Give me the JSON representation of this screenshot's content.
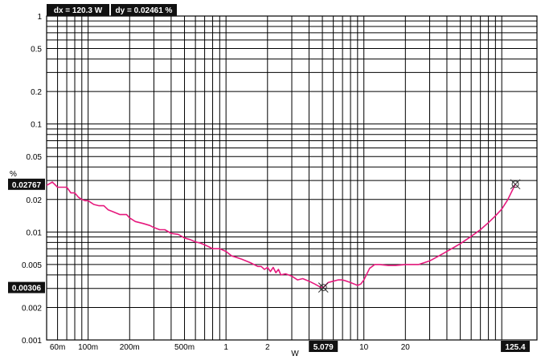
{
  "chart_data": {
    "type": "line",
    "title": "",
    "xlabel": "W",
    "ylabel": "%",
    "x_scale": "log",
    "y_scale": "log",
    "xlim": [
      0.05,
      180
    ],
    "ylim": [
      0.001,
      1
    ],
    "grid": true,
    "x_tick_labels": [
      {
        "value": 0.06,
        "label": "60m"
      },
      {
        "value": 0.1,
        "label": "100m"
      },
      {
        "value": 0.2,
        "label": "200m"
      },
      {
        "value": 0.5,
        "label": "500m"
      },
      {
        "value": 1,
        "label": "1"
      },
      {
        "value": 2,
        "label": "2"
      },
      {
        "value": 10,
        "label": "10"
      },
      {
        "value": 20,
        "label": "20"
      }
    ],
    "y_tick_labels": [
      {
        "value": 1,
        "label": "1"
      },
      {
        "value": 0.5,
        "label": "0.5"
      },
      {
        "value": 0.2,
        "label": "0.2"
      },
      {
        "value": 0.1,
        "label": "0.1"
      },
      {
        "value": 0.05,
        "label": "0.05"
      },
      {
        "value": 0.02,
        "label": "0.02"
      },
      {
        "value": 0.01,
        "label": "0.01"
      },
      {
        "value": 0.005,
        "label": "0.005"
      },
      {
        "value": 0.002,
        "label": "0.002"
      },
      {
        "value": 0.001,
        "label": "0.001"
      }
    ],
    "line_color": "#e6197d",
    "series": [
      {
        "x": [
          0.05,
          0.055,
          0.06,
          0.065,
          0.07,
          0.075,
          0.08,
          0.085,
          0.09,
          0.095,
          0.1,
          0.11,
          0.12,
          0.13,
          0.14,
          0.15,
          0.17,
          0.19,
          0.2,
          0.22,
          0.25,
          0.28,
          0.3,
          0.33,
          0.36,
          0.4,
          0.45,
          0.5,
          0.55,
          0.6,
          0.65,
          0.7,
          0.75,
          0.8,
          0.9,
          1.0,
          1.1,
          1.2,
          1.3,
          1.5,
          1.7,
          1.8,
          1.9,
          2.0,
          2.1,
          2.2,
          2.3,
          2.4,
          2.5,
          2.7,
          3.0,
          3.3,
          3.6,
          4.0,
          4.4,
          4.8,
          5.079,
          5.5,
          6.0,
          6.5,
          7.0,
          7.5,
          8.0,
          8.5,
          9.0,
          9.5,
          10.0,
          11.0,
          12.0,
          13.0,
          15.0,
          17.0,
          20.0,
          22.0,
          25.0,
          30.0,
          35.0,
          40.0,
          50.0,
          60.0,
          70.0,
          80.0,
          90.0,
          100.0,
          110.0,
          125.4
        ],
        "y": [
          0.027,
          0.029,
          0.026,
          0.026,
          0.026,
          0.023,
          0.023,
          0.021,
          0.02,
          0.0195,
          0.0195,
          0.018,
          0.0175,
          0.0175,
          0.016,
          0.0155,
          0.0145,
          0.0145,
          0.0135,
          0.0125,
          0.012,
          0.0115,
          0.011,
          0.0105,
          0.0105,
          0.0097,
          0.0095,
          0.0088,
          0.0085,
          0.0081,
          0.0079,
          0.0076,
          0.0073,
          0.007,
          0.007,
          0.0066,
          0.006,
          0.0058,
          0.0056,
          0.0052,
          0.0048,
          0.0048,
          0.0045,
          0.0047,
          0.0043,
          0.0047,
          0.0042,
          0.0045,
          0.004,
          0.0041,
          0.0039,
          0.0036,
          0.0037,
          0.0035,
          0.0033,
          0.0031,
          0.00306,
          0.0034,
          0.0035,
          0.0036,
          0.0036,
          0.0035,
          0.0034,
          0.0033,
          0.0032,
          0.0033,
          0.0036,
          0.0046,
          0.005,
          0.005,
          0.0049,
          0.0049,
          0.005,
          0.005,
          0.005,
          0.0054,
          0.006,
          0.0066,
          0.0078,
          0.0091,
          0.0105,
          0.0122,
          0.0141,
          0.0163,
          0.0197,
          0.02767
        ]
      }
    ],
    "cursors": [
      {
        "x": 5.079,
        "y": 0.00306,
        "x_label": "5.079",
        "y_label": "0.00306"
      },
      {
        "x": 125.4,
        "y": 0.02767,
        "x_label": "125.4",
        "y_label": "0.02767"
      }
    ],
    "readouts": {
      "dx": "dx = 120.3 W",
      "dy": "dy = 0.02461 %"
    }
  }
}
